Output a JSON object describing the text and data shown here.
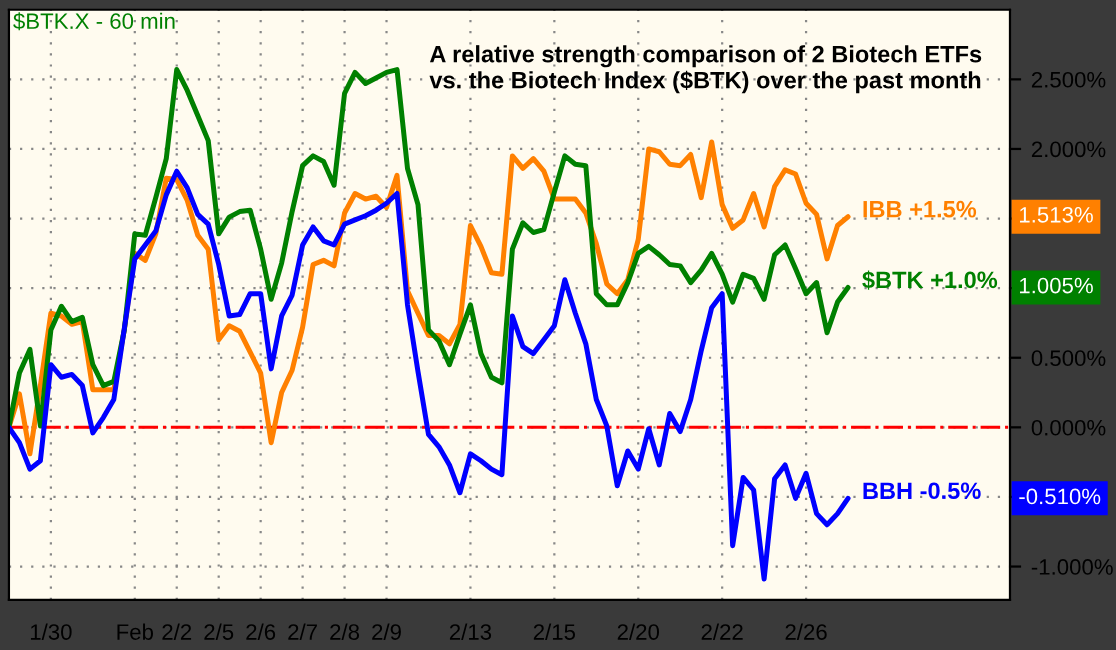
{
  "chart_data": {
    "type": "line",
    "title": "$BTK.X - 60 min",
    "annotations": [
      "A relative strength comparison of 2 Biotech ETFs\nvs. the Biotech Index ($BTK) over the past month",
      "1.513%",
      "1.005%",
      "-0.510%"
    ],
    "categories": [
      null,
      null,
      null,
      null,
      "1/30",
      null,
      null,
      null,
      null,
      null,
      null,
      null,
      "Feb",
      null,
      null,
      null,
      "2/2",
      null,
      null,
      null,
      "2/5",
      null,
      null,
      null,
      "2/6",
      null,
      null,
      null,
      "2/7",
      null,
      null,
      null,
      "2/8",
      null,
      null,
      null,
      "2/9",
      null,
      null,
      null,
      null,
      null,
      null,
      null,
      "2/13",
      null,
      null,
      null,
      null,
      null,
      null,
      null,
      "2/15",
      null,
      null,
      null,
      null,
      null,
      null,
      null,
      "2/20",
      null,
      null,
      null,
      null,
      null,
      null,
      null,
      "2/22",
      null,
      null,
      null,
      null,
      null,
      null,
      null,
      "2/26",
      null,
      null,
      null,
      null
    ],
    "ylim": [
      -1.24,
      3.0
    ],
    "yticks": [
      {
        "value": -1.0,
        "label": "-1.000%"
      },
      {
        "value": -0.5,
        "label": null
      },
      {
        "value": 0.0,
        "label": "0.000%"
      },
      {
        "value": 0.5,
        "label": "0.500%"
      },
      {
        "value": 1.0,
        "label": null
      },
      {
        "value": 1.5,
        "label": null
      },
      {
        "value": 2.0,
        "label": "2.000%"
      },
      {
        "value": 2.5,
        "label": "2.500%"
      }
    ],
    "grid": true,
    "legend": "right",
    "marker": "none",
    "line_style": "solid",
    "ref_lines": [
      {
        "axis": "y",
        "value": 0,
        "label": null,
        "color": "#ff0000",
        "line_style": "dashdot"
      }
    ],
    "series": [
      {
        "name": "IBB +1.5%",
        "color": "#ff8000",
        "values": [
          0,
          0.24,
          -0.19,
          0.3,
          0.82,
          0.8,
          0.74,
          0.76,
          0.27,
          0.27,
          0.27,
          0.7,
          1.25,
          1.2,
          1.39,
          1.79,
          1.78,
          1.63,
          1.38,
          1.28,
          0.63,
          0.73,
          0.69,
          0.54,
          0.39,
          -0.11,
          0.25,
          0.41,
          0.72,
          1.17,
          1.2,
          1.16,
          1.54,
          1.68,
          1.64,
          1.66,
          1.58,
          1.81,
          0.98,
          0.82,
          0.66,
          0.66,
          0.6,
          0.74,
          1.45,
          1.3,
          1.11,
          1.1,
          1.95,
          1.86,
          1.93,
          1.84,
          1.64,
          1.64,
          1.64,
          1.54,
          1.32,
          1.03,
          0.96,
          1.06,
          1.35,
          2.0,
          1.98,
          1.89,
          1.88,
          1.96,
          1.65,
          2.05,
          1.6,
          1.43,
          1.49,
          1.68,
          1.44,
          1.73,
          1.85,
          1.82,
          1.61,
          1.53,
          1.21,
          1.45,
          1.513
        ]
      },
      {
        "name": "$BTK +1.0%",
        "color": "#008000",
        "values": [
          0,
          0.39,
          0.56,
          0.01,
          0.7,
          0.87,
          0.76,
          0.79,
          0.45,
          0.3,
          0.33,
          0.7,
          1.39,
          1.38,
          1.65,
          1.93,
          2.57,
          2.42,
          2.24,
          2.06,
          1.39,
          1.51,
          1.55,
          1.56,
          1.28,
          0.92,
          1.18,
          1.55,
          1.88,
          1.95,
          1.91,
          1.74,
          2.4,
          2.55,
          2.47,
          2.51,
          2.55,
          2.57,
          1.86,
          1.6,
          0.7,
          0.62,
          0.45,
          0.67,
          0.88,
          0.53,
          0.36,
          0.32,
          1.28,
          1.47,
          1.4,
          1.42,
          1.69,
          1.95,
          1.89,
          1.88,
          0.96,
          0.88,
          0.88,
          1.04,
          1.25,
          1.3,
          1.24,
          1.17,
          1.16,
          1.04,
          1.13,
          1.25,
          1.1,
          0.9,
          1.1,
          1.07,
          0.92,
          1.24,
          1.31,
          1.14,
          0.96,
          1.04,
          0.68,
          0.9,
          1.005
        ]
      },
      {
        "name": "BBH -0.5%",
        "color": "#0000ff",
        "values": [
          0,
          -0.11,
          -0.3,
          -0.24,
          0.45,
          0.36,
          0.38,
          0.3,
          -0.04,
          0.07,
          0.2,
          0.71,
          1.21,
          1.31,
          1.41,
          1.67,
          1.84,
          1.72,
          1.53,
          1.46,
          1.17,
          0.8,
          0.81,
          0.96,
          0.96,
          0.42,
          0.8,
          0.95,
          1.31,
          1.44,
          1.34,
          1.31,
          1.46,
          1.49,
          1.52,
          1.56,
          1.61,
          1.68,
          0.88,
          0.4,
          -0.05,
          -0.14,
          -0.27,
          -0.47,
          -0.19,
          -0.24,
          -0.3,
          -0.34,
          0.8,
          0.58,
          0.53,
          0.63,
          0.73,
          1.06,
          0.82,
          0.6,
          0.2,
          0.01,
          -0.42,
          -0.17,
          -0.3,
          -0.01,
          -0.27,
          0.1,
          -0.03,
          0.2,
          0.55,
          0.86,
          0.96,
          -0.85,
          -0.36,
          -0.45,
          -1.09,
          -0.37,
          -0.27,
          -0.51,
          -0.33,
          -0.62,
          -0.7,
          -0.62,
          -0.51
        ]
      }
    ]
  }
}
